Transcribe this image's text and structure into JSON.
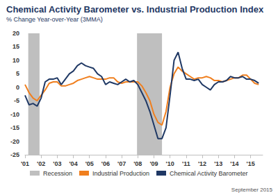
{
  "chart_data": {
    "type": "line",
    "title": "Chemical Activity Barometer vs. Industrial Production Index",
    "subtitle": "% Change Year-over-Year (3MMA)",
    "footnote": "September 2015",
    "x": [
      2001,
      2001.25,
      2001.5,
      2001.75,
      2002,
      2002.25,
      2002.5,
      2002.75,
      2003,
      2003.25,
      2003.5,
      2003.75,
      2004,
      2004.25,
      2004.5,
      2004.75,
      2005,
      2005.25,
      2005.5,
      2005.75,
      2006,
      2006.25,
      2006.5,
      2006.75,
      2007,
      2007.25,
      2007.5,
      2007.75,
      2008,
      2008.25,
      2008.5,
      2008.75,
      2009,
      2009.25,
      2009.5,
      2009.75,
      2010,
      2010.25,
      2010.5,
      2010.75,
      2011,
      2011.25,
      2011.5,
      2011.75,
      2012,
      2012.25,
      2012.5,
      2012.75,
      2013,
      2013.25,
      2013.5,
      2013.75,
      2014,
      2014.25,
      2014.5,
      2014.75,
      2015,
      2015.25,
      2015.5
    ],
    "series": [
      {
        "name": "Industrial Production",
        "color": "#f07f1e",
        "values": [
          1,
          -2,
          -4,
          -5,
          -3,
          -1,
          1.5,
          2,
          2,
          0.5,
          0.5,
          1,
          1.5,
          2.5,
          3,
          3.5,
          4,
          3.5,
          3,
          3,
          3,
          3.5,
          3.5,
          2,
          1.5,
          2,
          2,
          2,
          2,
          0.5,
          -2,
          -5,
          -10,
          -13,
          -14,
          -9,
          0,
          5,
          7.5,
          6,
          5,
          4,
          3,
          3.5,
          3.5,
          4,
          3.5,
          2.5,
          2.5,
          2,
          2.5,
          3,
          3.5,
          3.5,
          4.5,
          4.5,
          3,
          1.5,
          1
        ]
      },
      {
        "name": "Chemical Activity Barometer",
        "color": "#1f3864",
        "values": [
          -3,
          -6.5,
          -6,
          -7,
          -4,
          2,
          3,
          3,
          3.5,
          1,
          3,
          5,
          6,
          8,
          9,
          8,
          7.5,
          7,
          5,
          4,
          1,
          2,
          1.5,
          1,
          2,
          3,
          2,
          2.5,
          1,
          -2,
          -5,
          -9,
          -14,
          -19,
          -19,
          -15,
          -3,
          10,
          13,
          7,
          3,
          3,
          2.5,
          3,
          1,
          0,
          -1,
          1,
          2,
          2,
          2.5,
          4,
          3.5,
          3.5,
          4,
          3,
          3,
          2.5,
          1.5
        ]
      }
    ],
    "recessions": {
      "name": "Recession",
      "color": "#bfbfbf",
      "spans": [
        [
          2001.2,
          2001.9
        ],
        [
          2007.95,
          2009.5
        ]
      ]
    },
    "xlim": [
      2001,
      2015.75
    ],
    "xticks": [
      {
        "value": 2001,
        "label": "'01"
      },
      {
        "value": 2002,
        "label": "'02"
      },
      {
        "value": 2003,
        "label": "'03"
      },
      {
        "value": 2004,
        "label": "'04"
      },
      {
        "value": 2005,
        "label": "'05"
      },
      {
        "value": 2006,
        "label": "'06"
      },
      {
        "value": 2007,
        "label": "'07"
      },
      {
        "value": 2008,
        "label": "'08"
      },
      {
        "value": 2009,
        "label": "'09"
      },
      {
        "value": 2010,
        "label": "'10"
      },
      {
        "value": 2011,
        "label": "'11"
      },
      {
        "value": 2012,
        "label": "'12"
      },
      {
        "value": 2013,
        "label": "'13"
      },
      {
        "value": 2014,
        "label": "'14"
      },
      {
        "value": 2015,
        "label": "'15"
      }
    ],
    "ylim": [
      -25,
      20
    ],
    "yticks": [
      -25,
      -20,
      -15,
      -10,
      -5,
      0,
      5,
      10,
      15,
      20
    ],
    "grid": false,
    "legend": "bottom"
  }
}
